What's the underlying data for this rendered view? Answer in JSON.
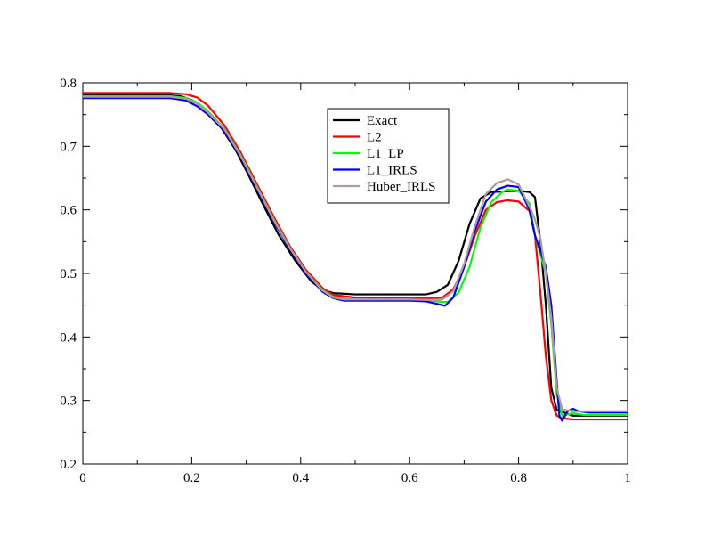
{
  "chart_data": {
    "type": "line",
    "title": "",
    "xlabel": "",
    "ylabel": "",
    "xlim": [
      0,
      1
    ],
    "ylim": [
      0.2,
      0.8
    ],
    "x_ticks": [
      "0",
      "0.2",
      "0.4",
      "0.6",
      "0.8",
      "1"
    ],
    "y_ticks": [
      "0.2",
      "0.3",
      "0.4",
      "0.5",
      "0.6",
      "0.7",
      "0.8"
    ],
    "x_tick_values": [
      0,
      0.2,
      0.4,
      0.6,
      0.8,
      1
    ],
    "y_tick_values": [
      0.2,
      0.3,
      0.4,
      0.5,
      0.6,
      0.7,
      0.8
    ],
    "grid": false,
    "legend_position": "top-center",
    "series": [
      {
        "name": "Exact",
        "color": "#000000",
        "points": [
          [
            0,
            0.781
          ],
          [
            0.15,
            0.781
          ],
          [
            0.18,
            0.779
          ],
          [
            0.2,
            0.773
          ],
          [
            0.22,
            0.762
          ],
          [
            0.25,
            0.735
          ],
          [
            0.28,
            0.695
          ],
          [
            0.3,
            0.662
          ],
          [
            0.33,
            0.61
          ],
          [
            0.36,
            0.56
          ],
          [
            0.39,
            0.52
          ],
          [
            0.42,
            0.487
          ],
          [
            0.44,
            0.474
          ],
          [
            0.46,
            0.469
          ],
          [
            0.5,
            0.467
          ],
          [
            0.6,
            0.467
          ],
          [
            0.63,
            0.467
          ],
          [
            0.65,
            0.471
          ],
          [
            0.67,
            0.482
          ],
          [
            0.69,
            0.52
          ],
          [
            0.71,
            0.578
          ],
          [
            0.73,
            0.618
          ],
          [
            0.75,
            0.628
          ],
          [
            0.8,
            0.63
          ],
          [
            0.82,
            0.628
          ],
          [
            0.83,
            0.62
          ],
          [
            0.84,
            0.55
          ],
          [
            0.85,
            0.45
          ],
          [
            0.86,
            0.32
          ],
          [
            0.87,
            0.285
          ],
          [
            0.9,
            0.276
          ],
          [
            1,
            0.276
          ]
        ]
      },
      {
        "name": "L2",
        "color": "#ff0000",
        "points": [
          [
            0,
            0.784
          ],
          [
            0.16,
            0.784
          ],
          [
            0.19,
            0.782
          ],
          [
            0.21,
            0.777
          ],
          [
            0.23,
            0.764
          ],
          [
            0.26,
            0.733
          ],
          [
            0.29,
            0.69
          ],
          [
            0.32,
            0.64
          ],
          [
            0.35,
            0.59
          ],
          [
            0.38,
            0.543
          ],
          [
            0.41,
            0.505
          ],
          [
            0.44,
            0.477
          ],
          [
            0.46,
            0.466
          ],
          [
            0.5,
            0.462
          ],
          [
            0.6,
            0.461
          ],
          [
            0.64,
            0.461
          ],
          [
            0.66,
            0.462
          ],
          [
            0.68,
            0.475
          ],
          [
            0.7,
            0.51
          ],
          [
            0.72,
            0.56
          ],
          [
            0.74,
            0.6
          ],
          [
            0.76,
            0.612
          ],
          [
            0.78,
            0.615
          ],
          [
            0.8,
            0.613
          ],
          [
            0.82,
            0.598
          ],
          [
            0.83,
            0.56
          ],
          [
            0.84,
            0.47
          ],
          [
            0.85,
            0.37
          ],
          [
            0.86,
            0.3
          ],
          [
            0.87,
            0.276
          ],
          [
            0.88,
            0.272
          ],
          [
            0.9,
            0.27
          ],
          [
            1,
            0.27
          ]
        ]
      },
      {
        "name": "L1_LP",
        "color": "#00ff00",
        "points": [
          [
            0,
            0.779
          ],
          [
            0.16,
            0.779
          ],
          [
            0.19,
            0.776
          ],
          [
            0.21,
            0.769
          ],
          [
            0.23,
            0.755
          ],
          [
            0.26,
            0.728
          ],
          [
            0.29,
            0.686
          ],
          [
            0.32,
            0.636
          ],
          [
            0.35,
            0.586
          ],
          [
            0.38,
            0.54
          ],
          [
            0.41,
            0.502
          ],
          [
            0.44,
            0.474
          ],
          [
            0.46,
            0.463
          ],
          [
            0.5,
            0.458
          ],
          [
            0.6,
            0.458
          ],
          [
            0.64,
            0.457
          ],
          [
            0.66,
            0.455
          ],
          [
            0.67,
            0.455
          ],
          [
            0.69,
            0.47
          ],
          [
            0.71,
            0.51
          ],
          [
            0.73,
            0.572
          ],
          [
            0.75,
            0.612
          ],
          [
            0.77,
            0.628
          ],
          [
            0.78,
            0.632
          ],
          [
            0.8,
            0.63
          ],
          [
            0.82,
            0.61
          ],
          [
            0.83,
            0.56
          ],
          [
            0.84,
            0.53
          ],
          [
            0.85,
            0.5
          ],
          [
            0.86,
            0.42
          ],
          [
            0.87,
            0.31
          ],
          [
            0.88,
            0.276
          ],
          [
            0.9,
            0.28
          ],
          [
            0.92,
            0.277
          ],
          [
            1,
            0.277
          ]
        ]
      },
      {
        "name": "L1_IRLS",
        "color": "#0000ff",
        "points": [
          [
            0,
            0.776
          ],
          [
            0.16,
            0.776
          ],
          [
            0.19,
            0.772
          ],
          [
            0.21,
            0.763
          ],
          [
            0.23,
            0.75
          ],
          [
            0.26,
            0.724
          ],
          [
            0.29,
            0.683
          ],
          [
            0.32,
            0.633
          ],
          [
            0.35,
            0.583
          ],
          [
            0.38,
            0.538
          ],
          [
            0.41,
            0.5
          ],
          [
            0.44,
            0.471
          ],
          [
            0.46,
            0.461
          ],
          [
            0.48,
            0.457
          ],
          [
            0.6,
            0.457
          ],
          [
            0.63,
            0.456
          ],
          [
            0.65,
            0.452
          ],
          [
            0.665,
            0.449
          ],
          [
            0.68,
            0.462
          ],
          [
            0.7,
            0.51
          ],
          [
            0.72,
            0.568
          ],
          [
            0.74,
            0.613
          ],
          [
            0.76,
            0.632
          ],
          [
            0.78,
            0.638
          ],
          [
            0.8,
            0.636
          ],
          [
            0.82,
            0.6
          ],
          [
            0.83,
            0.56
          ],
          [
            0.84,
            0.535
          ],
          [
            0.85,
            0.51
          ],
          [
            0.86,
            0.45
          ],
          [
            0.87,
            0.33
          ],
          [
            0.875,
            0.275
          ],
          [
            0.88,
            0.268
          ],
          [
            0.89,
            0.283
          ],
          [
            0.9,
            0.287
          ],
          [
            0.91,
            0.283
          ],
          [
            0.93,
            0.281
          ],
          [
            1,
            0.281
          ]
        ]
      },
      {
        "name": "Huber_IRLS",
        "color": "#b09a9a",
        "points": [
          [
            0,
            0.778
          ],
          [
            0.16,
            0.778
          ],
          [
            0.19,
            0.775
          ],
          [
            0.21,
            0.767
          ],
          [
            0.23,
            0.753
          ],
          [
            0.26,
            0.727
          ],
          [
            0.29,
            0.685
          ],
          [
            0.32,
            0.635
          ],
          [
            0.35,
            0.585
          ],
          [
            0.38,
            0.54
          ],
          [
            0.41,
            0.502
          ],
          [
            0.44,
            0.473
          ],
          [
            0.46,
            0.462
          ],
          [
            0.48,
            0.459
          ],
          [
            0.6,
            0.459
          ],
          [
            0.64,
            0.458
          ],
          [
            0.66,
            0.459
          ],
          [
            0.68,
            0.472
          ],
          [
            0.7,
            0.515
          ],
          [
            0.72,
            0.575
          ],
          [
            0.74,
            0.625
          ],
          [
            0.76,
            0.642
          ],
          [
            0.78,
            0.648
          ],
          [
            0.8,
            0.64
          ],
          [
            0.82,
            0.605
          ],
          [
            0.83,
            0.585
          ],
          [
            0.84,
            0.555
          ],
          [
            0.85,
            0.5
          ],
          [
            0.86,
            0.43
          ],
          [
            0.87,
            0.32
          ],
          [
            0.88,
            0.286
          ],
          [
            0.9,
            0.283
          ],
          [
            1,
            0.283
          ]
        ]
      }
    ]
  }
}
